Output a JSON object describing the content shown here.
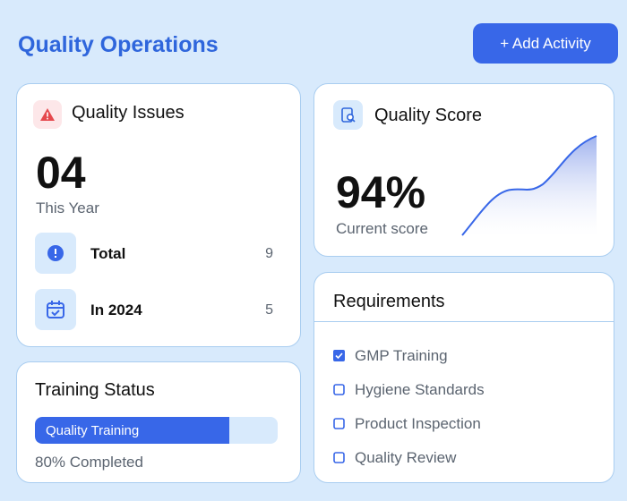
{
  "header": {
    "title": "Quality Operations",
    "button": "+ Add Activity"
  },
  "issues": {
    "title": "Quality Issues",
    "count": "04",
    "period": "This Year",
    "rows": [
      {
        "label": "Total",
        "value": 9
      },
      {
        "label": "In 2024",
        "value": 5
      }
    ]
  },
  "score": {
    "title": "Quality Score",
    "value": "94%",
    "caption": "Current score"
  },
  "training": {
    "title": "Training Status",
    "bar_label": "Quality Training",
    "progress": {
      "value": 80,
      "label": "80% Completed"
    }
  },
  "requirements": {
    "title": "Requirements",
    "items": [
      {
        "label": "GMP Training",
        "checked": true
      },
      {
        "label": "Hygiene Standards",
        "checked": false
      },
      {
        "label": "Product Inspection",
        "checked": false
      },
      {
        "label": "Quality Review",
        "checked": false
      }
    ]
  }
}
